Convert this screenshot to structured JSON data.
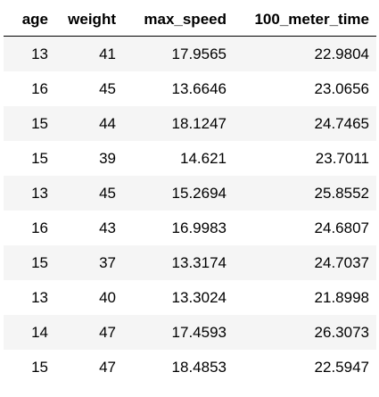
{
  "table": {
    "columns": [
      "age",
      "weight",
      "max_speed",
      "100_meter_time"
    ],
    "rows": [
      [
        "13",
        "41",
        "17.9565",
        "22.9804"
      ],
      [
        "16",
        "45",
        "13.6646",
        "23.0656"
      ],
      [
        "15",
        "44",
        "18.1247",
        "24.7465"
      ],
      [
        "15",
        "39",
        "14.621",
        "23.7011"
      ],
      [
        "13",
        "45",
        "15.2694",
        "25.8552"
      ],
      [
        "16",
        "43",
        "16.9983",
        "24.6807"
      ],
      [
        "15",
        "37",
        "13.3174",
        "24.7037"
      ],
      [
        "13",
        "40",
        "13.3024",
        "21.8998"
      ],
      [
        "14",
        "47",
        "17.4593",
        "26.3073"
      ],
      [
        "15",
        "47",
        "18.4853",
        "22.5947"
      ]
    ]
  }
}
